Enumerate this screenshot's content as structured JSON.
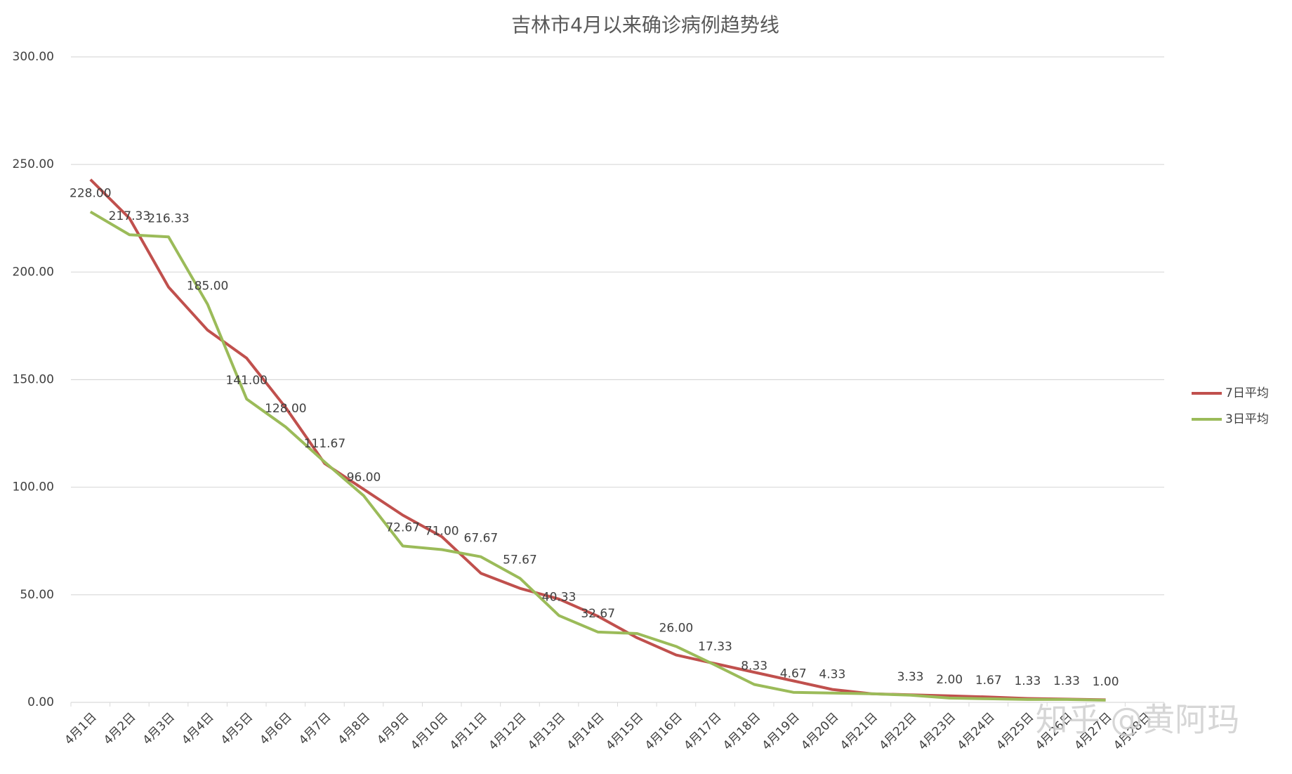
{
  "chart_data": {
    "type": "line",
    "title": "吉林市4月以来确诊病例趋势线",
    "categories": [
      "4月1日",
      "4月2日",
      "4月3日",
      "4月4日",
      "4月5日",
      "4月6日",
      "4月7日",
      "4月8日",
      "4月9日",
      "4月10日",
      "4月11日",
      "4月12日",
      "4月13日",
      "4月14日",
      "4月15日",
      "4月16日",
      "4月17日",
      "4月18日",
      "4月19日",
      "4月20日",
      "4月21日",
      "4月22日",
      "4月23日",
      "4月24日",
      "4月25日",
      "4月26日",
      "4月27日",
      "4月28日"
    ],
    "series": [
      {
        "name": "7日平均",
        "color": "#c0504d",
        "values": [
          243,
          225,
          193,
          173,
          160,
          137,
          111,
          99,
          87,
          77,
          60,
          53,
          48,
          40,
          30,
          22,
          18,
          14,
          10,
          6,
          4,
          3.5,
          3,
          2.5,
          1.8,
          1.5,
          1.2,
          null
        ]
      },
      {
        "name": "3日平均",
        "color": "#9bbb59",
        "values": [
          228,
          217.33,
          216.33,
          185,
          141,
          128,
          111.67,
          96,
          72.67,
          71,
          67.67,
          57.67,
          40.33,
          32.67,
          32,
          26,
          17.33,
          8.33,
          4.67,
          4.33,
          4,
          3.33,
          2,
          1.67,
          1.33,
          1.33,
          1,
          null
        ],
        "value_labels": [
          "228.00",
          "217.33",
          "216.33",
          "185.00",
          "141.00",
          "128.00",
          "111.67",
          "96.00",
          "72.67",
          "71.00",
          "67.67",
          "57.67",
          "40.33",
          "32.67",
          null,
          "26.00",
          "17.33",
          "8.33",
          "4.67",
          "4.33",
          null,
          "3.33",
          "2.00",
          "1.67",
          "1.33",
          "1.33",
          "1.00",
          null
        ]
      }
    ],
    "ylim": [
      0,
      300
    ],
    "yticks": [
      {
        "value": 0,
        "label": "0.00"
      },
      {
        "value": 50,
        "label": "50.00"
      },
      {
        "value": 100,
        "label": "100.00"
      },
      {
        "value": 150,
        "label": "150.00"
      },
      {
        "value": 200,
        "label": "200.00"
      },
      {
        "value": 250,
        "label": "250.00"
      },
      {
        "value": 300,
        "label": "300.00"
      }
    ],
    "grid": true,
    "legend": "right",
    "watermark": "知乎 @黄阿玛"
  }
}
